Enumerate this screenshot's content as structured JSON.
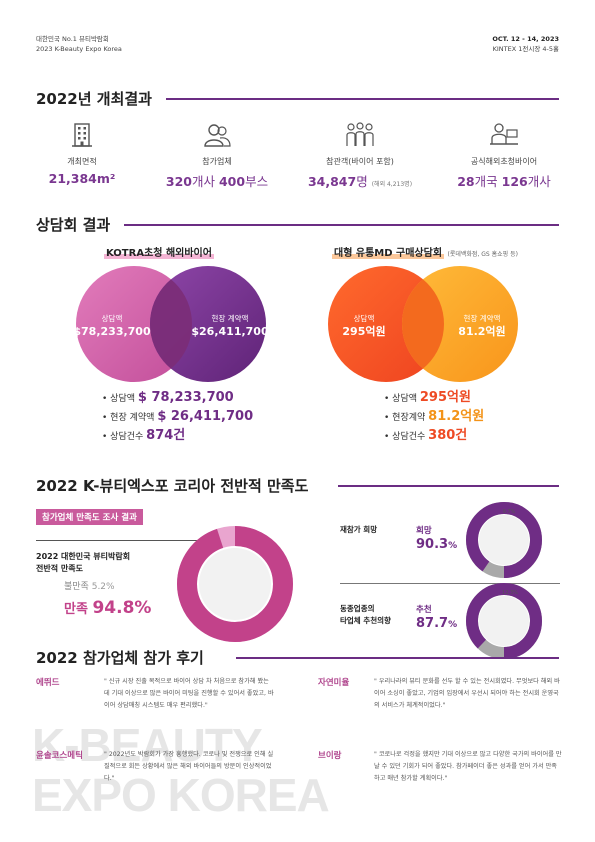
{
  "header": {
    "org": "대한민국 No.1 뷰티박람회",
    "event": "2023 K-Beauty Expo Korea",
    "date": "OCT. 12 - 14, 2023",
    "venue": "KINTEX 1전시장 4-5홀"
  },
  "results": {
    "title": "2022년 개최결과",
    "stats": [
      {
        "icon": "building-icon",
        "label": "개최면적",
        "value": "21,384m²"
      },
      {
        "icon": "users-icon",
        "label": "참가업체",
        "value_a": "320",
        "unit_a": "개사",
        "value_b": "400",
        "unit_b": "부스"
      },
      {
        "icon": "crowd-icon",
        "label": "참관객(바이어 포함)",
        "value_a": "34,847",
        "unit_a": "명",
        "note": "(해외 4,213명)"
      },
      {
        "icon": "buyer-desk-icon",
        "label": "공식해외초청바이어",
        "value_a": "28",
        "unit_a": "개국",
        "value_b": "126",
        "unit_b": "개사"
      }
    ]
  },
  "consult": {
    "title": "상담회 결과",
    "kotra": {
      "heading": "KOTRA초청 해외바이어",
      "left_label": "상담액",
      "left_value": "$78,233,700",
      "right_label": "현장 계약액",
      "right_value": "$26,411,700",
      "items": [
        {
          "label": "상담액",
          "value": "$ 78,233,700"
        },
        {
          "label": "현장 계약액",
          "value": "$ 26,411,700"
        },
        {
          "label": "상담건수",
          "value": "874건"
        }
      ]
    },
    "md": {
      "heading": "대형 유통MD 구매상담회",
      "note": "(롯데백화점, GS 홈쇼핑 등)",
      "left_label": "상담액",
      "left_value": "295억원",
      "right_label": "현장 계약액",
      "right_value": "81.2억원",
      "items": [
        {
          "label": "상담액",
          "value": "295억원"
        },
        {
          "label": "현장계약",
          "value": "81.2억원"
        },
        {
          "label": "상담건수",
          "value": "380건"
        }
      ]
    }
  },
  "satisfaction": {
    "title": "2022 K-뷰티엑스포 코리아 전반적 만족도",
    "tag": "참가업체 만족도 조사 결과",
    "overall_label_1": "2022 대한민국 뷰티박람회",
    "overall_label_2": "전반적 만족도",
    "dissatisfied_label": "불만족",
    "dissatisfied_value": "5.2%",
    "satisfied_label": "만족",
    "satisfied_value": "94.8%",
    "satisfied_fraction": 0.948,
    "revisit": {
      "label": "재참가 희망",
      "key": "희망",
      "value": "90.3",
      "unit": "%",
      "rest": "9.7%",
      "fraction": 0.903
    },
    "recommend": {
      "label_1": "동종업종의",
      "label_2": "타업체 추천의향",
      "key": "추천",
      "value": "87.7",
      "unit": "%",
      "rest": "12.3%",
      "fraction": 0.877
    },
    "colors": {
      "pink": "#c2428a",
      "purple": "#6f2d85",
      "gray": "#a9a9a9"
    }
  },
  "reviews": {
    "title": "2022 참가업체 참가 후기",
    "items": [
      {
        "name": "에뛰드",
        "text": "\" 신규 시장 진출 목적으로 바이어 상담 차 처음으로 참가해 봤는데 기대 이상으로 많은 바이어 미팅을 진행할 수 있어서 좋았고, 바이어 상담매칭 시스템도 매우 편리했다.\""
      },
      {
        "name": "자연미율",
        "text": "\" 우리나라의 뷰티 문화를 선두 할 수 있는 전시회였다. 무엇보다 해외 바이어 소싱이 좋았고, 기업의 입장에서 우선시 되어야 하는 전시회 운영국의 서비스가 체계적이었다.\""
      },
      {
        "name": "윤솔코스메틱",
        "text": "\" 2022년도 박람회가 가장 흥행했다. 코로나 및 전쟁으로 인해 실질적으로 회든 상황에서 많은 해외 바이어들의 방문이 인상적이었다.\""
      },
      {
        "name": "브이랑",
        "text": "\" 코로나로 걱정을 했지만 기대 이상으로 많고 다양한 국가의 바이어를 만날 수 있던 기회가 되어 좋았다. 참가페이더 좋은 성과를 얻어 가서 만족하고 매년 참가할 계획이다.\""
      }
    ]
  },
  "watermark": {
    "line1": "K-BEAUTY",
    "line2": "EXPO KOREA"
  }
}
